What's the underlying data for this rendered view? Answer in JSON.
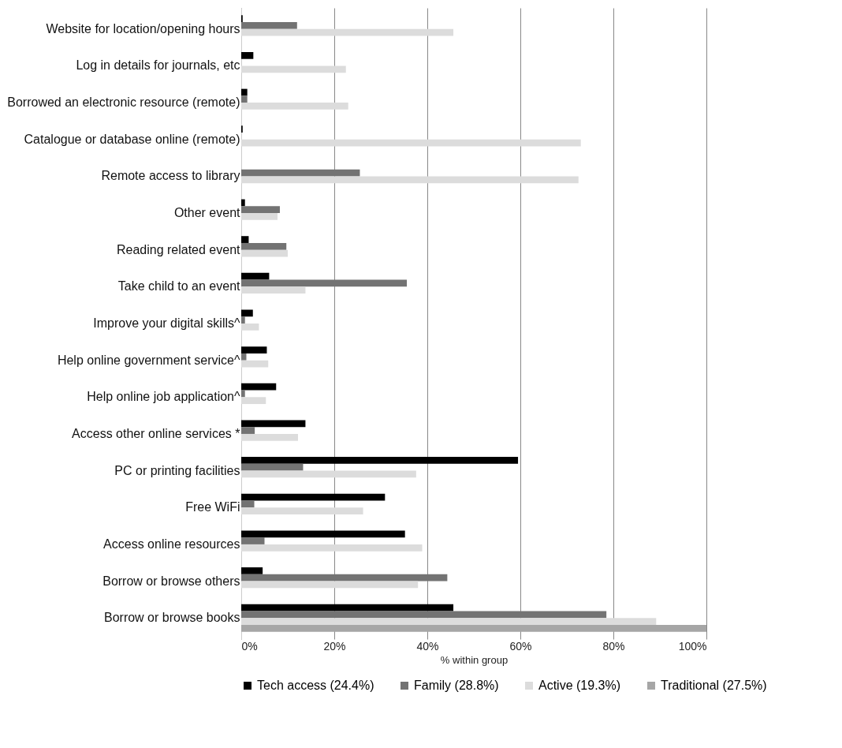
{
  "chart_data": {
    "type": "bar",
    "orientation": "horizontal",
    "xlabel": "% within group",
    "categories": [
      "Website for location/opening hours",
      "Log in details for journals, etc",
      "Borrowed an electronic resource (remote)",
      "Catalogue or database online (remote)",
      "Remote access to library",
      "Other event",
      "Reading related event",
      "Take child to an event",
      "Improve your digital skills^",
      "Help online government service^",
      "Help online job application^",
      "Access other online services *",
      "PC or printing facilities",
      "Free WiFi",
      "Access online resources",
      "Borrow or browse others",
      "Borrow or browse books"
    ],
    "series": [
      {
        "name": "Tech access (24.4%)",
        "color": "#000000",
        "values": [
          0.3,
          2.6,
          1.3,
          0.3,
          0,
          0.8,
          1.6,
          6,
          2.5,
          5.5,
          7.5,
          13.8,
          59.5,
          30.9,
          35.2,
          4.6,
          45.6
        ]
      },
      {
        "name": "Family (28.8%)",
        "color": "#737373",
        "values": [
          12,
          0,
          1.3,
          0,
          25.5,
          8.3,
          9.7,
          35.6,
          0.8,
          1.1,
          0.8,
          2.9,
          13.3,
          2.8,
          5,
          44.3,
          78.5
        ]
      },
      {
        "name": "Active (19.3%)",
        "color": "#dcdcdc",
        "values": [
          45.6,
          22.5,
          23,
          73,
          72.5,
          7.8,
          10,
          13.8,
          3.8,
          5.8,
          5.3,
          12.2,
          37.6,
          26.2,
          38.9,
          38,
          89.2
        ]
      },
      {
        "name": "Traditional (27.5%)",
        "color": "#a6a6a6",
        "values": [
          0,
          0,
          0,
          0,
          0,
          0,
          0,
          0,
          0,
          0,
          0,
          0,
          0,
          0,
          0,
          0,
          100
        ]
      }
    ],
    "xlim": [
      0,
      100
    ],
    "xticks": [
      {
        "value": 0,
        "label": "0%"
      },
      {
        "value": 20,
        "label": "20%"
      },
      {
        "value": 40,
        "label": "40%"
      },
      {
        "value": 60,
        "label": "60%"
      },
      {
        "value": 80,
        "label": "80%"
      },
      {
        "value": 100,
        "label": "100%"
      }
    ],
    "grid": "x",
    "legend": "bottom"
  }
}
